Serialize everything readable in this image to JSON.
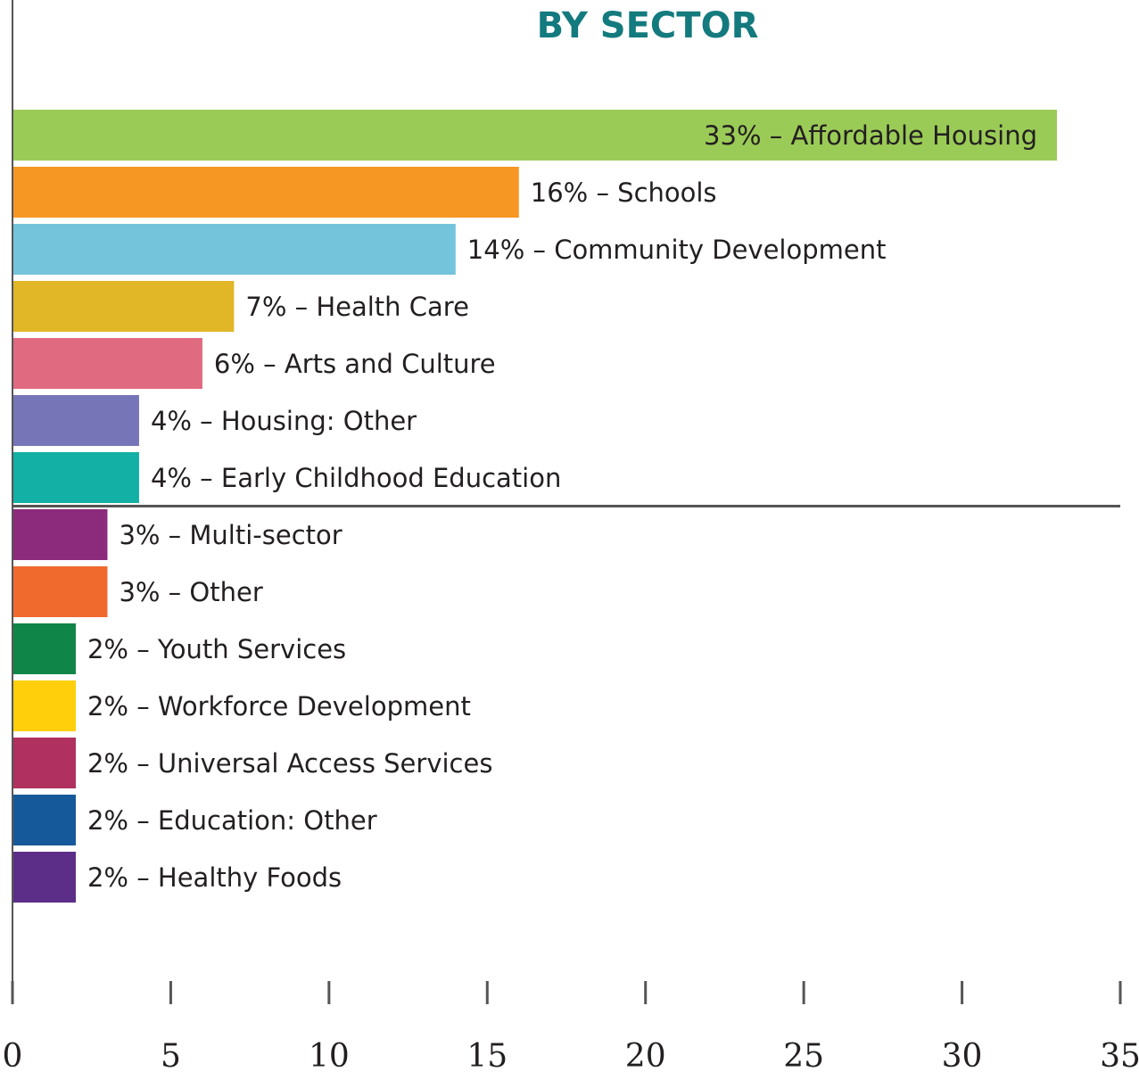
{
  "chart_data": {
    "type": "bar",
    "orientation": "horizontal",
    "title": "BY SECTOR",
    "xlabel": "",
    "ylabel": "",
    "xlim": [
      0,
      35
    ],
    "x_ticks": [
      0,
      5,
      10,
      15,
      20,
      25,
      30,
      35
    ],
    "divider_after_index": 6,
    "bars": [
      {
        "label": "33% – Affordable Housing",
        "value": 33,
        "color": "#9bcb57",
        "label_inside": true
      },
      {
        "label": "16% – Schools",
        "value": 16,
        "color": "#f69623",
        "label_inside": false
      },
      {
        "label": "14% – Community Development",
        "value": 14,
        "color": "#74c4db",
        "label_inside": false
      },
      {
        "label": "7% – Health Care",
        "value": 7,
        "color": "#e1b728",
        "label_inside": false
      },
      {
        "label": "6% – Arts and Culture",
        "value": 6,
        "color": "#e06a80",
        "label_inside": false
      },
      {
        "label": "4% – Housing: Other",
        "value": 4,
        "color": "#7575b8",
        "label_inside": false
      },
      {
        "label": "4% – Early Childhood Education",
        "value": 4,
        "color": "#12b0a5",
        "label_inside": false
      },
      {
        "label": "3% – Multi-sector",
        "value": 3,
        "color": "#8c2b7b",
        "label_inside": false
      },
      {
        "label": "3% – Other",
        "value": 3,
        "color": "#f06a2e",
        "label_inside": false
      },
      {
        "label": "2% – Youth Services",
        "value": 2,
        "color": "#0f8648",
        "label_inside": false
      },
      {
        "label": "2% – Workforce Development",
        "value": 2,
        "color": "#fecf0a",
        "label_inside": false
      },
      {
        "label": "2% – Universal Access Services",
        "value": 2,
        "color": "#b0305f",
        "label_inside": false
      },
      {
        "label": "2% – Education: Other",
        "value": 2,
        "color": "#16599b",
        "label_inside": false
      },
      {
        "label": "2% – Healthy Foods",
        "value": 2,
        "color": "#5c2e88",
        "label_inside": false
      }
    ]
  }
}
